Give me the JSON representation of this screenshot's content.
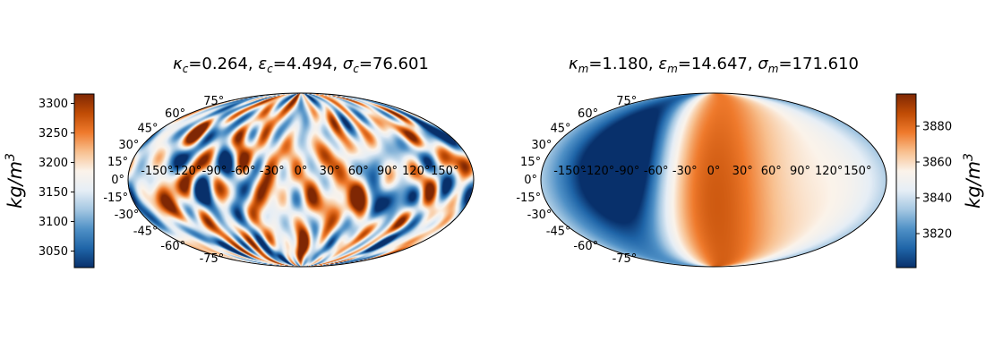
{
  "chart_data": [
    {
      "type": "heatmap",
      "projection": "mollweide",
      "title": {
        "symbol": "κ",
        "symbol_sub": "c",
        "v1": "=0.264, ",
        "eps": "ε",
        "eps_sub": "c",
        "v2": "=4.494, ",
        "sig": "σ",
        "sig_sub": "c",
        "v3": "=76.601"
      },
      "colorbar": {
        "position": "left",
        "label_base": "kg/m",
        "label_exp": "3",
        "range": [
          3022,
          3316
        ],
        "ticks": [
          "3050",
          "3100",
          "3150",
          "3200",
          "3250",
          "3300"
        ]
      },
      "lon_labels": [
        "-150°",
        "-120°",
        "-90°",
        "-60°",
        "-30°",
        "0°",
        "30°",
        "60°",
        "90°",
        "120°",
        "150°"
      ],
      "lat_labels": [
        "75°",
        "60°",
        "45°",
        "30°",
        "15°",
        "0°",
        "-15°",
        "-30°",
        "-45°",
        "-60°",
        "-75°"
      ],
      "colormap": [
        "#08306b",
        "#1f65a8",
        "#4f90c6",
        "#a4c7e2",
        "#e6eef6",
        "#fbf3ea",
        "#f8c08f",
        "#ef7a2c",
        "#c04c05",
        "#7f2704"
      ],
      "pattern": "random-noise"
    },
    {
      "type": "heatmap",
      "projection": "mollweide",
      "title": {
        "symbol": "κ",
        "symbol_sub": "m",
        "v1": "=1.180, ",
        "eps": "ε",
        "eps_sub": "m",
        "v2": "=14.647, ",
        "sig": "σ",
        "sig_sub": "m",
        "v3": "=171.610"
      },
      "colorbar": {
        "position": "right",
        "label_base": "kg/m",
        "label_exp": "3",
        "range": [
          3801,
          3898
        ],
        "ticks": [
          "3820",
          "3840",
          "3860",
          "3880"
        ]
      },
      "lon_labels": [
        "-150°",
        "-120°",
        "-90°",
        "-60°",
        "-30°",
        "0°",
        "30°",
        "60°",
        "90°",
        "120°",
        "150°"
      ],
      "lat_labels": [
        "75°",
        "60°",
        "45°",
        "30°",
        "15°",
        "0°",
        "-15°",
        "-30°",
        "-45°",
        "-60°",
        "-75°"
      ],
      "colormap": [
        "#08306b",
        "#1f65a8",
        "#4f90c6",
        "#a4c7e2",
        "#e6eef6",
        "#fbf3ea",
        "#f8c08f",
        "#ef7a2c",
        "#c04c05",
        "#7f2704"
      ],
      "pattern": "smooth-dipole"
    }
  ]
}
